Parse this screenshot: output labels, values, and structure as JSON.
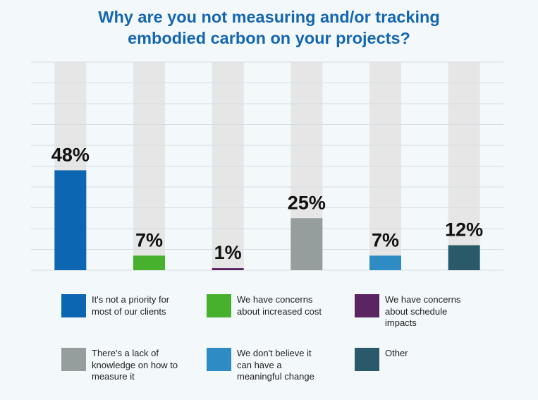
{
  "title_lines": [
    "Why are you not measuring and/or tracking",
    "embodied carbon on your projects?"
  ],
  "colors": {
    "title": "#1566b0",
    "track": "#e6e6e6",
    "grid": "#d7dde3",
    "label": "#111111"
  },
  "chart_data": {
    "type": "bar",
    "title": "Why are you not measuring and/or tracking embodied carbon on your projects?",
    "categories": [
      "It's not a priority for most of our clients",
      "We have concerns about increased cost",
      "We have concerns about schedule impacts",
      "There's a lack of knowledge on how to measure it",
      "We don't believe it can have a meaningful change",
      "Other"
    ],
    "values": [
      48,
      7,
      1,
      25,
      7,
      12
    ],
    "value_labels": [
      "48%",
      "7%",
      "1%",
      "25%",
      "7%",
      "12%"
    ],
    "colors": [
      "#0d66b2",
      "#47b12e",
      "#5a2560",
      "#959e9c",
      "#2f8bc4",
      "#2a5a6a"
    ],
    "ylim": [
      0,
      100
    ],
    "grid": true,
    "xlabel": "",
    "ylabel": "",
    "legend": "bottom"
  },
  "legend": [
    {
      "label": "It's not a priority for\nmost of our clients",
      "color": "#0d66b2"
    },
    {
      "label": "We have concerns\nabout increased cost",
      "color": "#47b12e"
    },
    {
      "label": "We have concerns\nabout schedule\nimpacts",
      "color": "#5a2560"
    },
    {
      "label": "There's a lack of\nknowledge on how to\nmeasure it",
      "color": "#959e9c"
    },
    {
      "label": "We don't believe it\ncan have a\nmeaningful change",
      "color": "#2f8bc4"
    },
    {
      "label": "Other",
      "color": "#2a5a6a"
    }
  ]
}
